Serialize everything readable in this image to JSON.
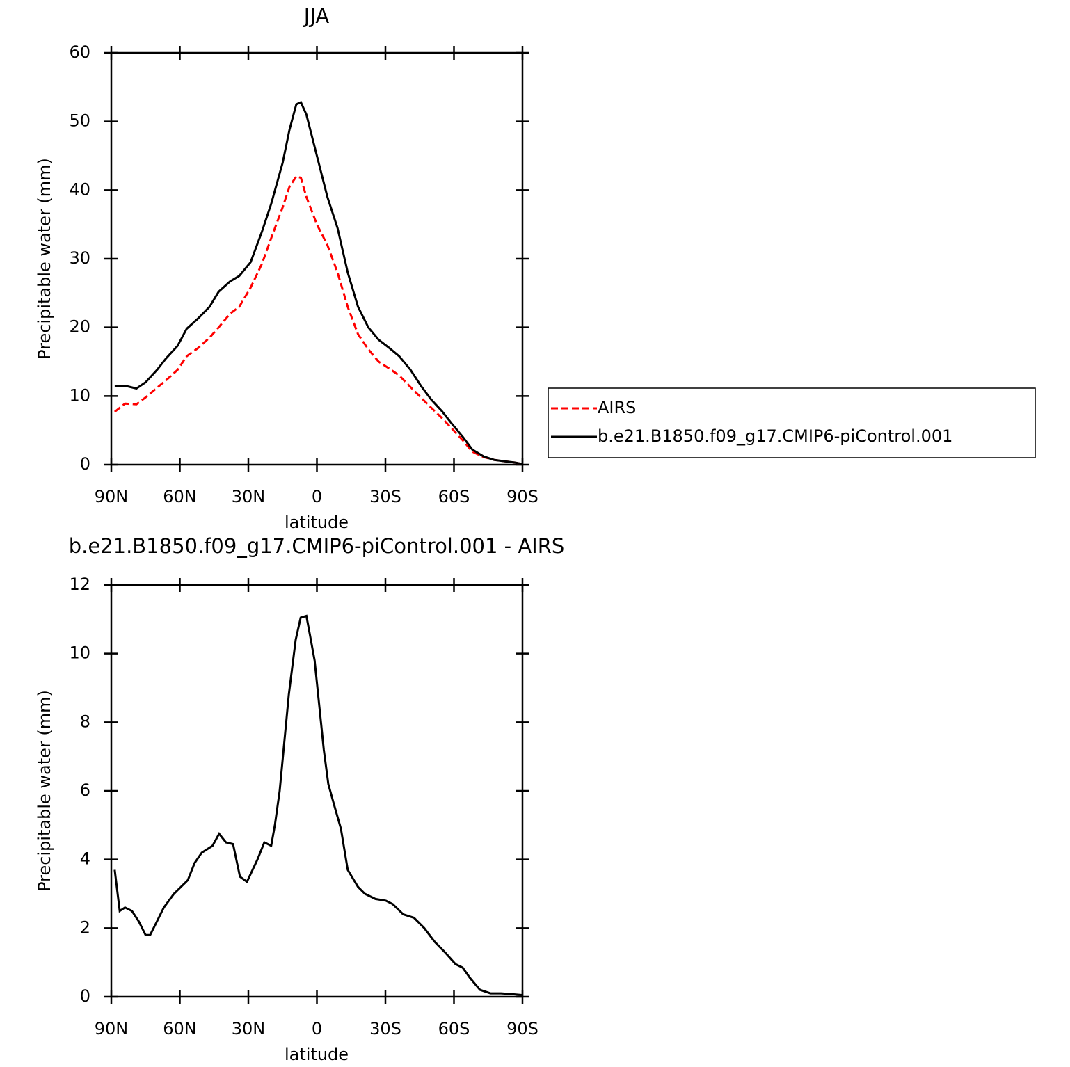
{
  "chart_data": [
    {
      "type": "line",
      "title": "JJA",
      "xlabel": "latitude",
      "ylabel": "Precipitable water (mm)",
      "x": [
        88.5,
        84,
        79,
        75,
        70,
        66,
        61,
        57,
        52,
        47,
        43,
        38,
        34,
        29,
        24,
        20,
        15,
        12,
        9,
        7,
        4.6,
        0,
        -4.6,
        -9,
        -13.5,
        -18,
        -22.5,
        -27,
        -31.7,
        -36,
        -41,
        -45.5,
        -50,
        -54.7,
        -59,
        -64,
        -68,
        -73,
        -77.5,
        -82,
        -86.7,
        -89.7
      ],
      "series": [
        {
          "name": "AIRS",
          "color": "#ff0000",
          "linestyle": "dashed",
          "values": [
            7.7,
            8.9,
            8.8,
            9.8,
            11.2,
            12.3,
            13.8,
            15.8,
            17,
            18.5,
            20,
            22,
            23,
            25.8,
            29.3,
            33,
            37.5,
            40.5,
            42,
            41.8,
            39,
            35,
            32,
            28,
            23,
            19,
            16.8,
            15,
            14,
            13,
            11.3,
            9.8,
            8.3,
            6.8,
            5.3,
            3.5,
            1.9,
            1.1,
            0.7,
            0.5,
            0.3,
            0.1
          ]
        },
        {
          "name": "b.e21.B1850.f09_g17.CMIP6-piControl.001",
          "color": "#000000",
          "linestyle": "solid",
          "values": [
            11.5,
            11.5,
            11.1,
            12,
            13.8,
            15.5,
            17.3,
            19.8,
            21.3,
            23,
            25.2,
            26.7,
            27.5,
            29.5,
            34,
            38,
            44,
            48.8,
            52.5,
            52.8,
            51,
            45,
            39,
            34.5,
            28,
            23,
            20,
            18.2,
            17,
            15.8,
            13.8,
            11.5,
            9.5,
            7.8,
            6,
            4,
            2.2,
            1.2,
            0.7,
            0.5,
            0.3,
            0.1
          ]
        }
      ],
      "xlim": [
        90,
        -90
      ],
      "xticks": [
        {
          "value": 90,
          "label": "90N"
        },
        {
          "value": 60,
          "label": "60N"
        },
        {
          "value": 30,
          "label": "30N"
        },
        0,
        {
          "value": -30,
          "label": "30S"
        },
        {
          "value": -60,
          "label": "60S"
        },
        {
          "value": -90,
          "label": "90S"
        }
      ],
      "ylim": [
        0,
        60
      ],
      "yticks": [
        0,
        10,
        20,
        30,
        40,
        50,
        60
      ],
      "legend": "right"
    },
    {
      "type": "line",
      "title": "b.e21.B1850.f09_g17.CMIP6-piControl.001 - AIRS",
      "xlabel": "latitude",
      "ylabel": "Precipitable water (mm)",
      "x": [
        88.5,
        86.3,
        84,
        81,
        78,
        75,
        73,
        70,
        67,
        62.6,
        59.5,
        56.5,
        53.5,
        50.4,
        45.7,
        42.8,
        39.8,
        36.7,
        33.7,
        30.6,
        26,
        23,
        20,
        18.4,
        16.3,
        12.3,
        9.3,
        7.1,
        4.6,
        3.2,
        1,
        -3,
        -5,
        -7.5,
        -10.5,
        -13.5,
        -18,
        -21,
        -25.6,
        -30.2,
        -33.2,
        -37.8,
        -42.5,
        -47,
        -51.6,
        -56,
        -60.7,
        -63.8,
        -67,
        -71.4,
        -76,
        -80.6,
        -85,
        -89.7
      ],
      "values": [
        3.7,
        2.5,
        2.6,
        2.5,
        2.2,
        1.8,
        1.8,
        2.2,
        2.6,
        3.0,
        3.2,
        3.4,
        3.9,
        4.2,
        4.4,
        4.75,
        4.5,
        4.45,
        3.5,
        3.35,
        4.0,
        4.5,
        4.4,
        5,
        6,
        8.8,
        10.4,
        11.05,
        11.1,
        10.6,
        9.8,
        7.2,
        6.2,
        5.6,
        4.9,
        3.7,
        3.2,
        3.0,
        2.85,
        2.8,
        2.7,
        2.4,
        2.3,
        2.0,
        1.6,
        1.3,
        0.95,
        0.85,
        0.55,
        0.2,
        0.1,
        0.1,
        0.08,
        0.05
      ],
      "color": "#000000",
      "xlim": [
        90,
        -90
      ],
      "xticks": [
        {
          "value": 90,
          "label": "90N"
        },
        {
          "value": 60,
          "label": "60N"
        },
        {
          "value": 30,
          "label": "30N"
        },
        0,
        {
          "value": -30,
          "label": "30S"
        },
        {
          "value": -60,
          "label": "60S"
        },
        {
          "value": -90,
          "label": "90S"
        }
      ],
      "ylim": [
        0,
        12
      ],
      "yticks": [
        0,
        2,
        4,
        6,
        8,
        10,
        12
      ]
    }
  ]
}
